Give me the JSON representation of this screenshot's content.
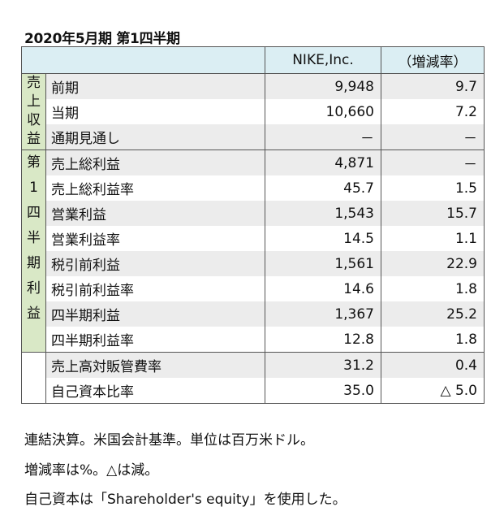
{
  "title": "2020年5月期 第1四半期",
  "header": {
    "company": "NIKE,Inc.",
    "rate": "（増減率）"
  },
  "groups": {
    "revenue_label": [
      "売",
      "上",
      "収",
      "益"
    ],
    "quarter_label": [
      "第",
      "1",
      "四",
      "半",
      "期",
      "利",
      "益"
    ]
  },
  "rows": [
    {
      "label": "前期",
      "value": "9,948",
      "rate": "9.7"
    },
    {
      "label": "当期",
      "value": "10,660",
      "rate": "7.2"
    },
    {
      "label": "通期見通し",
      "value": "－",
      "rate": "－"
    },
    {
      "label": "売上総利益",
      "value": "4,871",
      "rate": "－"
    },
    {
      "label": "売上総利益率",
      "value": "45.7",
      "rate": "1.5"
    },
    {
      "label": "営業利益",
      "value": "1,543",
      "rate": "15.7"
    },
    {
      "label": "営業利益率",
      "value": "14.5",
      "rate": "1.1"
    },
    {
      "label": "税引前利益",
      "value": "1,561",
      "rate": "22.9"
    },
    {
      "label": "税引前利益率",
      "value": "14.6",
      "rate": "1.8"
    },
    {
      "label": "四半期利益",
      "value": "1,367",
      "rate": "25.2"
    },
    {
      "label": "四半期利益率",
      "value": "12.8",
      "rate": "1.8"
    },
    {
      "label": "売上高対販管費率",
      "value": "31.2",
      "rate": "0.4"
    },
    {
      "label": "自己資本比率",
      "value": "35.0",
      "rate": "△ 5.0"
    }
  ],
  "notes": [
    "連結決算。米国会計基準。単位は百万米ドル。",
    "増減率は%。△は減。",
    "自己資本は「Shareholder's equity」を使用した。"
  ]
}
